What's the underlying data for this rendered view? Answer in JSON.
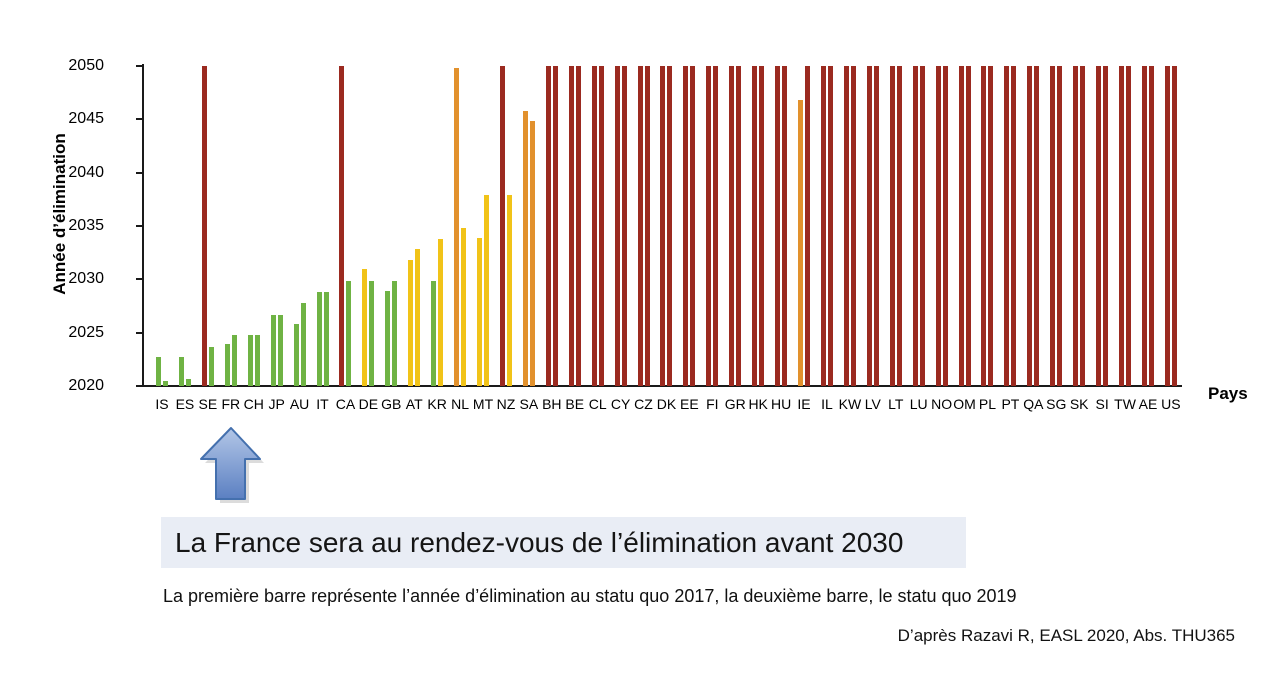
{
  "figure": {
    "headline": "La France sera au rendez-vous de l’élimination avant 2030",
    "subtitle": "La première barre représente l’année d’élimination au statu quo 2017, la deuxième barre, le statu quo 2019",
    "credit": "D’après Razavi R, EASL 2020, Abs. THU365"
  },
  "annotations": {
    "arrow_target": "FR",
    "arrow_fill_top": "#b3c7e7",
    "arrow_fill_bottom": "#5b80c2",
    "arrow_border": "#4470ae"
  },
  "chart_data": {
    "type": "bar",
    "title": "",
    "xlabel": "Pays",
    "ylabel": "Année d’élimination",
    "ylim": [
      2020,
      2050
    ],
    "yticks": [
      2020,
      2025,
      2030,
      2035,
      2040,
      2045,
      2050
    ],
    "grid": false,
    "legend_position": "none",
    "series_labels": [
      "statu quo 2017",
      "statu quo 2019"
    ],
    "colors": {
      "green": "#6fb344",
      "yellow": "#f1c318",
      "orange": "#e2912d",
      "red": "#9b2a20"
    },
    "countries": [
      {
        "code": "IS",
        "values": [
          2022.7,
          2020.5
        ],
        "colors": [
          "green",
          "green"
        ]
      },
      {
        "code": "ES",
        "values": [
          2022.7,
          2020.7
        ],
        "colors": [
          "green",
          "green"
        ]
      },
      {
        "code": "SE",
        "values": [
          2050,
          2023.7
        ],
        "colors": [
          "red",
          "green"
        ]
      },
      {
        "code": "FR",
        "values": [
          2023.9,
          2024.8
        ],
        "colors": [
          "green",
          "green"
        ]
      },
      {
        "code": "CH",
        "values": [
          2024.8,
          2024.8
        ],
        "colors": [
          "green",
          "green"
        ]
      },
      {
        "code": "JP",
        "values": [
          2026.7,
          2026.7
        ],
        "colors": [
          "green",
          "green"
        ]
      },
      {
        "code": "AU",
        "values": [
          2025.8,
          2027.8
        ],
        "colors": [
          "green",
          "green"
        ]
      },
      {
        "code": "IT",
        "values": [
          2028.8,
          2028.8
        ],
        "colors": [
          "green",
          "green"
        ]
      },
      {
        "code": "CA",
        "values": [
          2050,
          2029.8
        ],
        "colors": [
          "red",
          "green"
        ]
      },
      {
        "code": "DE",
        "values": [
          2031,
          2029.8
        ],
        "colors": [
          "yellow",
          "green"
        ]
      },
      {
        "code": "GB",
        "values": [
          2028.9,
          2029.8
        ],
        "colors": [
          "green",
          "green"
        ]
      },
      {
        "code": "AT",
        "values": [
          2031.8,
          2032.8
        ],
        "colors": [
          "yellow",
          "yellow"
        ]
      },
      {
        "code": "KR",
        "values": [
          2029.8,
          2033.8
        ],
        "colors": [
          "green",
          "yellow"
        ]
      },
      {
        "code": "NL",
        "values": [
          2049.8,
          2034.8
        ],
        "colors": [
          "orange",
          "yellow"
        ]
      },
      {
        "code": "MT",
        "values": [
          2033.9,
          2037.9
        ],
        "colors": [
          "yellow",
          "yellow"
        ]
      },
      {
        "code": "NZ",
        "values": [
          2050,
          2037.9
        ],
        "colors": [
          "red",
          "yellow"
        ]
      },
      {
        "code": "SA",
        "values": [
          2045.8,
          2044.8
        ],
        "colors": [
          "orange",
          "orange"
        ]
      },
      {
        "code": "BH",
        "values": [
          2050,
          2050
        ],
        "colors": [
          "red",
          "red"
        ]
      },
      {
        "code": "BE",
        "values": [
          2050,
          2050
        ],
        "colors": [
          "red",
          "red"
        ]
      },
      {
        "code": "CL",
        "values": [
          2050,
          2050
        ],
        "colors": [
          "red",
          "red"
        ]
      },
      {
        "code": "CY",
        "values": [
          2050,
          2050
        ],
        "colors": [
          "red",
          "red"
        ]
      },
      {
        "code": "CZ",
        "values": [
          2050,
          2050
        ],
        "colors": [
          "red",
          "red"
        ]
      },
      {
        "code": "DK",
        "values": [
          2050,
          2050
        ],
        "colors": [
          "red",
          "red"
        ]
      },
      {
        "code": "EE",
        "values": [
          2050,
          2050
        ],
        "colors": [
          "red",
          "red"
        ]
      },
      {
        "code": "FI",
        "values": [
          2050,
          2050
        ],
        "colors": [
          "red",
          "red"
        ]
      },
      {
        "code": "GR",
        "values": [
          2050,
          2050
        ],
        "colors": [
          "red",
          "red"
        ]
      },
      {
        "code": "HK",
        "values": [
          2050,
          2050
        ],
        "colors": [
          "red",
          "red"
        ]
      },
      {
        "code": "HU",
        "values": [
          2050,
          2050
        ],
        "colors": [
          "red",
          "red"
        ]
      },
      {
        "code": "IE",
        "values": [
          2046.8,
          2050
        ],
        "colors": [
          "orange",
          "red"
        ]
      },
      {
        "code": "IL",
        "values": [
          2050,
          2050
        ],
        "colors": [
          "red",
          "red"
        ]
      },
      {
        "code": "KW",
        "values": [
          2050,
          2050
        ],
        "colors": [
          "red",
          "red"
        ]
      },
      {
        "code": "LV",
        "values": [
          2050,
          2050
        ],
        "colors": [
          "red",
          "red"
        ]
      },
      {
        "code": "LT",
        "values": [
          2050,
          2050
        ],
        "colors": [
          "red",
          "red"
        ]
      },
      {
        "code": "LU",
        "values": [
          2050,
          2050
        ],
        "colors": [
          "red",
          "red"
        ]
      },
      {
        "code": "NO",
        "values": [
          2050,
          2050
        ],
        "colors": [
          "red",
          "red"
        ]
      },
      {
        "code": "OM",
        "values": [
          2050,
          2050
        ],
        "colors": [
          "red",
          "red"
        ]
      },
      {
        "code": "PL",
        "values": [
          2050,
          2050
        ],
        "colors": [
          "red",
          "red"
        ]
      },
      {
        "code": "PT",
        "values": [
          2050,
          2050
        ],
        "colors": [
          "red",
          "red"
        ]
      },
      {
        "code": "QA",
        "values": [
          2050,
          2050
        ],
        "colors": [
          "red",
          "red"
        ]
      },
      {
        "code": "SG",
        "values": [
          2050,
          2050
        ],
        "colors": [
          "red",
          "red"
        ]
      },
      {
        "code": "SK",
        "values": [
          2050,
          2050
        ],
        "colors": [
          "red",
          "red"
        ]
      },
      {
        "code": "SI",
        "values": [
          2050,
          2050
        ],
        "colors": [
          "red",
          "red"
        ]
      },
      {
        "code": "TW",
        "values": [
          2050,
          2050
        ],
        "colors": [
          "red",
          "red"
        ]
      },
      {
        "code": "AE",
        "values": [
          2050,
          2050
        ],
        "colors": [
          "red",
          "red"
        ]
      },
      {
        "code": "US",
        "values": [
          2050,
          2050
        ],
        "colors": [
          "red",
          "red"
        ]
      }
    ]
  }
}
